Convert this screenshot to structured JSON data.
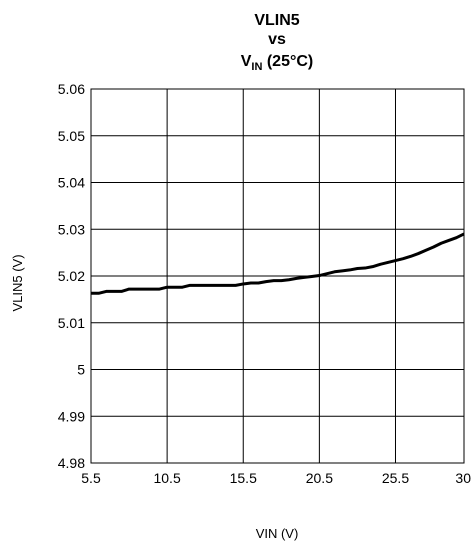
{
  "chart_data": {
    "type": "line",
    "title_lines": [
      "VLIN5",
      "vs"
    ],
    "title_v_main": "V",
    "title_v_sub": "IN",
    "title_v_rest": " (25°C)",
    "xlabel": "VIN (V)",
    "ylabel": "VLIN5 (V)",
    "xlim": [
      5.5,
      30
    ],
    "ylim": [
      4.98,
      5.06
    ],
    "x_ticks": [
      5.5,
      10.5,
      15.5,
      20.5,
      25.5,
      30
    ],
    "x_tick_labels": [
      "5.5",
      "10.5",
      "15.5",
      "20.5",
      "25.5",
      "30"
    ],
    "y_ticks": [
      4.98,
      4.99,
      5.0,
      5.01,
      5.02,
      5.03,
      5.04,
      5.05,
      5.06
    ],
    "y_tick_labels": [
      "4.98",
      "4.99",
      "5",
      "5.01",
      "5.02",
      "5.03",
      "5.04",
      "5.05",
      "5.06"
    ],
    "grid": true,
    "series": [
      {
        "color": "#000000",
        "x": [
          5.5,
          6.0,
          6.5,
          7.0,
          7.5,
          8.0,
          8.5,
          9.0,
          9.5,
          10.0,
          10.5,
          11.0,
          11.5,
          12.0,
          12.5,
          13.0,
          13.5,
          14.0,
          14.5,
          15.0,
          15.5,
          16.0,
          16.5,
          17.0,
          17.5,
          18.0,
          18.5,
          19.0,
          19.5,
          20.0,
          20.5,
          21.0,
          21.5,
          22.0,
          22.5,
          23.0,
          23.5,
          24.0,
          24.5,
          25.0,
          25.5,
          26.0,
          26.5,
          27.0,
          27.5,
          28.0,
          28.5,
          29.0,
          29.5,
          30.0
        ],
        "y": [
          5.0163,
          5.0163,
          5.0167,
          5.0167,
          5.0167,
          5.0172,
          5.0172,
          5.0172,
          5.0172,
          5.0172,
          5.0176,
          5.0176,
          5.0176,
          5.018,
          5.018,
          5.018,
          5.018,
          5.018,
          5.018,
          5.018,
          5.0183,
          5.0185,
          5.0185,
          5.0188,
          5.019,
          5.019,
          5.0192,
          5.0195,
          5.0197,
          5.0199,
          5.0201,
          5.0205,
          5.0209,
          5.0211,
          5.0213,
          5.0216,
          5.0217,
          5.022,
          5.0225,
          5.0229,
          5.0233,
          5.0237,
          5.0242,
          5.0248,
          5.0255,
          5.0262,
          5.027,
          5.0276,
          5.0282,
          5.029
        ]
      }
    ]
  }
}
